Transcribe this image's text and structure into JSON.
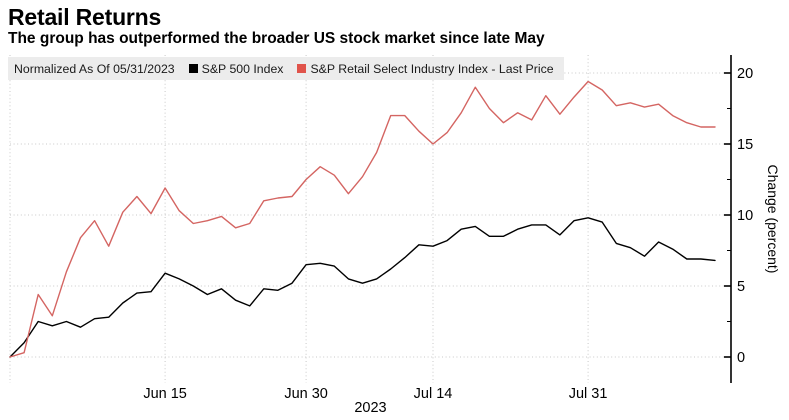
{
  "header": {
    "title": "Retail Returns",
    "subtitle": "The group has outperformed the broader US stock market since late May"
  },
  "legend": {
    "note": "Normalized As Of 05/31/2023",
    "items": [
      {
        "label": "S&P 500 Index",
        "color": "#000000"
      },
      {
        "label": "S&P Retail Select Industry Index - Last Price",
        "color": "#e0534a"
      }
    ]
  },
  "axes": {
    "ylabel": "Change (percent)",
    "year_label": "2023"
  },
  "chart_data": {
    "type": "line",
    "title": "Retail Returns",
    "ylabel": "Change (percent)",
    "ylim": [
      -1.8,
      21.3
    ],
    "yticks": [
      0,
      5,
      10,
      15,
      20
    ],
    "yticks_minor": [
      2.5,
      7.5,
      12.5,
      17.5
    ],
    "grid": true,
    "legend_position": "top-left",
    "x": [
      "May 31",
      "Jun 1",
      "Jun 2",
      "Jun 5",
      "Jun 6",
      "Jun 7",
      "Jun 8",
      "Jun 9",
      "Jun 12",
      "Jun 13",
      "Jun 14",
      "Jun 15",
      "Jun 16",
      "Jun 20",
      "Jun 21",
      "Jun 22",
      "Jun 23",
      "Jun 26",
      "Jun 27",
      "Jun 28",
      "Jun 29",
      "Jun 30",
      "Jul 3",
      "Jul 5",
      "Jul 6",
      "Jul 7",
      "Jul 10",
      "Jul 11",
      "Jul 12",
      "Jul 13",
      "Jul 14",
      "Jul 17",
      "Jul 18",
      "Jul 19",
      "Jul 20",
      "Jul 21",
      "Jul 24",
      "Jul 25",
      "Jul 26",
      "Jul 27",
      "Jul 28",
      "Jul 31",
      "Aug 1",
      "Aug 2",
      "Aug 3",
      "Aug 4",
      "Aug 7",
      "Aug 8",
      "Aug 9",
      "Aug 10",
      "Aug 11"
    ],
    "xticks": [
      {
        "index": 0,
        "label": ""
      },
      {
        "index": 11,
        "label": "Jun 15"
      },
      {
        "index": 21,
        "label": "Jun 30"
      },
      {
        "index": 30,
        "label": "Jul 14"
      },
      {
        "index": 41,
        "label": "Jul 31"
      }
    ],
    "xaxis_year": "2023",
    "series": [
      {
        "name": "S&P 500 Index",
        "color": "#000000",
        "values": [
          0.0,
          1.0,
          2.5,
          2.2,
          2.5,
          2.1,
          2.7,
          2.8,
          3.8,
          4.5,
          4.6,
          5.9,
          5.5,
          5.0,
          4.4,
          4.8,
          4.0,
          3.6,
          4.8,
          4.7,
          5.2,
          6.5,
          6.6,
          6.4,
          5.5,
          5.2,
          5.5,
          6.2,
          7.0,
          7.9,
          7.8,
          8.2,
          9.0,
          9.2,
          8.5,
          8.5,
          9.0,
          9.3,
          9.3,
          8.6,
          9.6,
          9.8,
          9.5,
          8.0,
          7.7,
          7.1,
          8.1,
          7.6,
          6.9,
          6.9,
          6.8
        ]
      },
      {
        "name": "S&P Retail Select Industry Index - Last Price",
        "color": "#d46562",
        "values": [
          0.0,
          0.3,
          4.4,
          2.9,
          6.0,
          8.4,
          9.6,
          7.8,
          10.2,
          11.3,
          10.1,
          11.9,
          10.3,
          9.4,
          9.6,
          9.9,
          9.1,
          9.4,
          11.0,
          11.2,
          11.3,
          12.5,
          13.4,
          12.8,
          11.5,
          12.7,
          14.4,
          17.0,
          17.0,
          15.9,
          15.0,
          15.8,
          17.2,
          19.0,
          17.5,
          16.5,
          17.2,
          16.7,
          18.4,
          17.1,
          18.3,
          19.4,
          18.8,
          17.7,
          17.9,
          17.6,
          17.8,
          17.0,
          16.5,
          16.2,
          16.2
        ]
      }
    ]
  }
}
